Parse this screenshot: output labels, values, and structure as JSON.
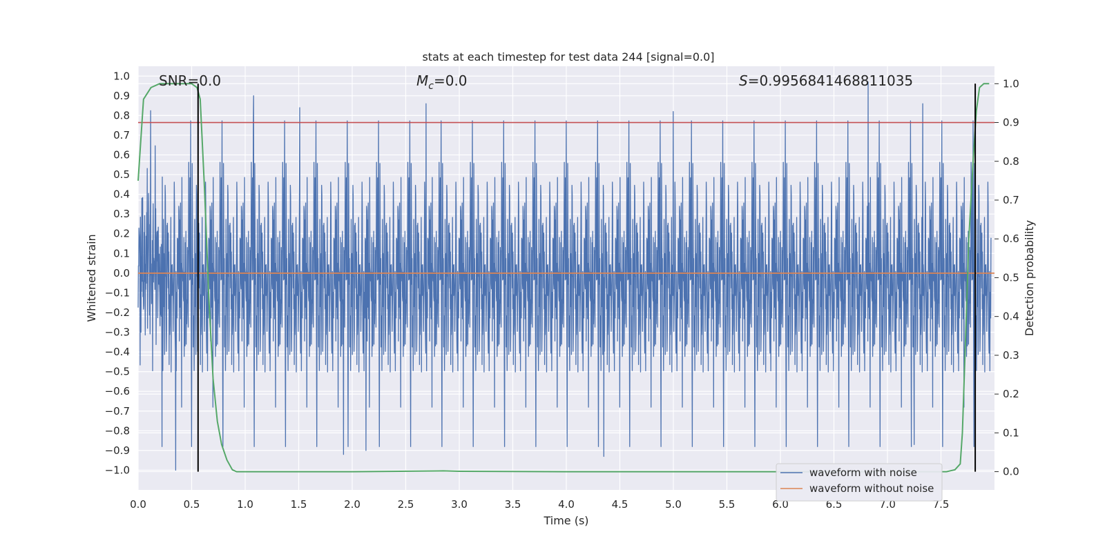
{
  "chart_data": {
    "type": "line",
    "title": "stats at each timestep for test data 244 [signal=0.0]",
    "xlabel": "Time (s)",
    "ylabel": "Whitened strain",
    "y2label": "Detection probability",
    "xlim": [
      0.0,
      8.0
    ],
    "ylim": [
      -1.1,
      1.05
    ],
    "y2lim": [
      -0.047,
      1.045
    ],
    "grid": true,
    "legend_location": "lower right",
    "x_ticks": [
      "0.0",
      "0.5",
      "1.0",
      "1.5",
      "2.0",
      "2.5",
      "3.0",
      "3.5",
      "4.0",
      "4.5",
      "5.0",
      "5.5",
      "6.0",
      "6.5",
      "7.0",
      "7.5"
    ],
    "y_ticks": [
      "1.0",
      "0.9",
      "0.8",
      "0.7",
      "0.6",
      "0.5",
      "0.4",
      "0.3",
      "0.2",
      "0.1",
      "0.0",
      "−0.1",
      "−0.2",
      "−0.3",
      "−0.4",
      "−0.5",
      "−0.6",
      "−0.7",
      "−0.8",
      "−0.9",
      "−1.0"
    ],
    "y2_ticks": [
      "1.0",
      "0.9",
      "0.8",
      "0.7",
      "0.6",
      "0.5",
      "0.4",
      "0.3",
      "0.2",
      "0.1",
      "0.0"
    ],
    "annotations": {
      "snr": "SNR=0.0",
      "mc_symbol": "M",
      "mc_subscript": "c",
      "mc_value": "=0.0",
      "s_symbol": "S",
      "s_value": "=0.9956841468811035"
    },
    "series": [
      {
        "name": "waveform with noise",
        "color": "#4c72b0",
        "axis": "left",
        "kind": "dense noise trace, about 0.0 to 8.0 s",
        "amplitude_envelope": [
          -1.0,
          0.97
        ],
        "peaks": [
          {
            "x": 0.35,
            "y": -1.0
          },
          {
            "x": 1.08,
            "y": 0.9
          },
          {
            "x": 1.51,
            "y": 0.84
          },
          {
            "x": 1.92,
            "y": -0.92
          },
          {
            "x": 2.13,
            "y": -0.9
          },
          {
            "x": 2.69,
            "y": 0.86
          },
          {
            "x": 4.35,
            "y": -0.93
          },
          {
            "x": 5.0,
            "y": 0.82
          },
          {
            "x": 6.82,
            "y": 0.97
          },
          {
            "x": 7.25,
            "y": -0.87
          },
          {
            "x": 7.33,
            "y": 0.86
          }
        ]
      },
      {
        "name": "waveform without noise",
        "color": "#dd8452",
        "axis": "left",
        "x": [
          0.0,
          8.0
        ],
        "y": [
          0.0,
          0.0
        ]
      },
      {
        "name": "detection probability",
        "color": "#55a868",
        "axis": "right",
        "x": [
          0.0,
          0.05,
          0.12,
          0.2,
          0.3,
          0.4,
          0.5,
          0.55,
          0.58,
          0.62,
          0.66,
          0.7,
          0.74,
          0.78,
          0.83,
          0.88,
          0.92,
          1.0,
          2.0,
          2.85,
          3.0,
          4.0,
          5.0,
          6.0,
          7.0,
          7.55,
          7.63,
          7.68,
          7.7,
          7.73,
          7.76,
          7.8,
          7.83,
          7.86,
          7.9,
          7.95
        ],
        "y": [
          0.75,
          0.96,
          0.99,
          1.0,
          1.0,
          1.0,
          1.0,
          0.99,
          0.96,
          0.73,
          0.45,
          0.24,
          0.13,
          0.07,
          0.03,
          0.005,
          0.0,
          0.0,
          0.0,
          0.002,
          0.001,
          0.0,
          0.0,
          0.0,
          0.0,
          0.0,
          0.005,
          0.02,
          0.1,
          0.35,
          0.6,
          0.8,
          0.93,
          0.99,
          1.0,
          1.0
        ]
      }
    ],
    "threshold": {
      "axis": "right",
      "y": 0.9,
      "color": "#c44e52"
    },
    "vlines": [
      {
        "x": 0.56,
        "y2_range": [
          0.0,
          1.0
        ],
        "color": "#000000"
      },
      {
        "x": 7.82,
        "y2_range": [
          0.0,
          1.0
        ],
        "color": "#000000"
      }
    ],
    "noise_seed": 244
  }
}
